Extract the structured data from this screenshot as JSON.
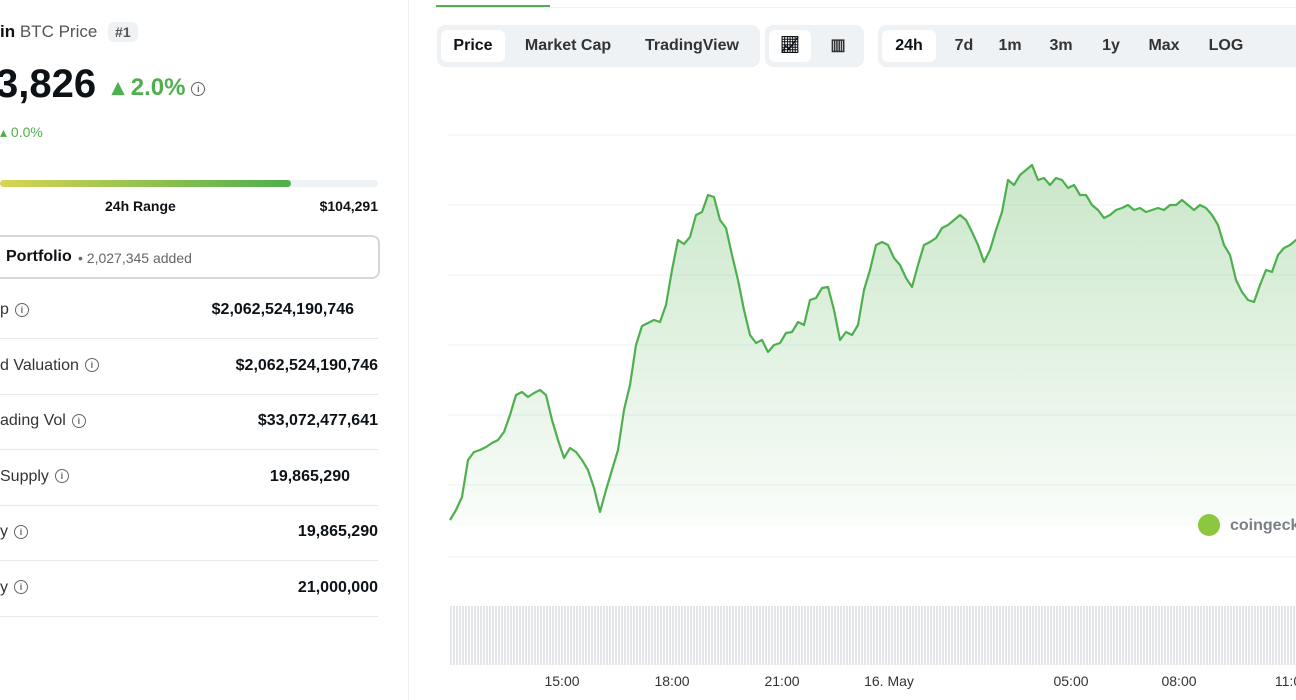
{
  "header": {
    "name": "in",
    "symbol": "BTC Price",
    "rank": "#1"
  },
  "price": {
    "value": "3,826",
    "change": "2.0%",
    "btc_change": "0.0%"
  },
  "range": {
    "label": "24h Range",
    "high": "$104,291"
  },
  "portfolio": {
    "label": "Portfolio",
    "added": "• 2,027,345 added"
  },
  "stats": [
    {
      "label": "p",
      "value": "$2,062,524,190,746"
    },
    {
      "label": "d Valuation",
      "value": "$2,062,524,190,746"
    },
    {
      "label": "ading Vol",
      "value": "$33,072,477,641"
    },
    {
      "label": "Supply",
      "value": "19,865,290"
    },
    {
      "label": "y",
      "value": "19,865,290"
    },
    {
      "label": "y",
      "value": "21,000,000"
    }
  ],
  "chart_tabs": [
    "Price",
    "Market Cap",
    "TradingView"
  ],
  "time_tabs": [
    "24h",
    "7d",
    "1m",
    "3m",
    "1y",
    "Max",
    "LOG"
  ],
  "x_axis": [
    "15:00",
    "18:00",
    "21:00",
    "16. May",
    "05:00",
    "08:00",
    "11:0"
  ],
  "watermark": "coingeck"
}
